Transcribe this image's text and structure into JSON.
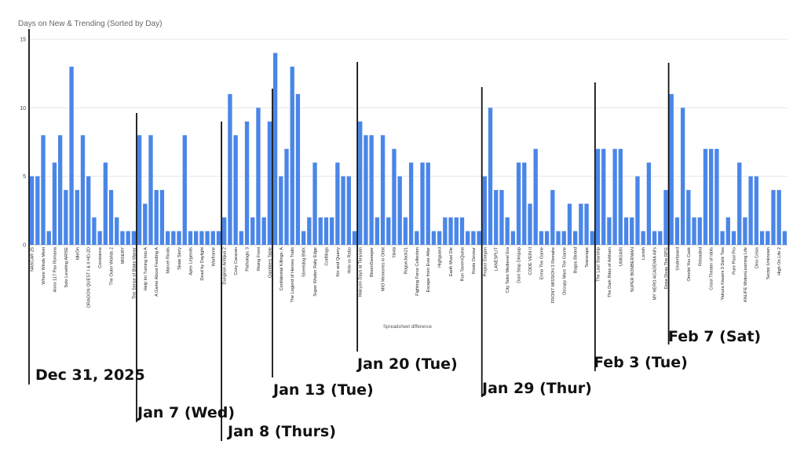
{
  "chart_data": {
    "type": "bar",
    "title": "Days on New & Trending (Sorted by Day)",
    "xlabel": "Spreadsheet difference",
    "ylabel": "",
    "ylim": [
      0,
      15
    ],
    "yticks": [
      0,
      5,
      10,
      15
    ],
    "grid": true,
    "legend": "none",
    "bar_color": "#4a86e8",
    "annotation_line_color": "#111111",
    "categories": [
      "NASCAR 25",
      "",
      "Where Winds Meet",
      "",
      "Anno 117 Pax Romana",
      "",
      "Solo Leveling ARISE",
      "",
      "IdleOn",
      "",
      "DRAGON QUEST I & II HD-2D",
      "",
      "Constance",
      "",
      "The Outer Worlds 2",
      "",
      "MISERY",
      "",
      "The Sense of Blake Manor",
      "",
      "Help Im Turning Into A",
      "",
      "A Game About Feeding A",
      "",
      "Marvel Rivals",
      "",
      "Skate Story",
      "",
      "Apex Legends",
      "",
      "Dead by Daylight",
      "",
      "Warframe",
      "",
      "Dungeon Antiqua 2",
      "",
      "Cozy Caravan",
      "",
      "Pathologic 3",
      "",
      "Rising Front",
      "",
      "Gamblers Table",
      "",
      "Confidential Killings: A",
      "",
      "The Legend of Heroes Trails",
      "",
      "Streetdog BMX",
      "",
      "Super Woden Rally Edge",
      "",
      "Craftlings",
      "",
      "Kin and Quarry",
      "",
      "Holo vs Robo",
      "",
      "Halcyon Days at Tanyuan",
      "",
      "BloomSweeper",
      "",
      "MIO Memories in Orbit",
      "",
      "TR49",
      "",
      "RogueJack21",
      "",
      "Fighting Force Collection",
      "",
      "Escape from Ever After",
      "",
      "Highguard",
      "",
      "Earth Must Die",
      "",
      "Run TavernQuest",
      "",
      "Roots Devour",
      "",
      "Project Dorgon",
      "",
      "LANESPLIT",
      "",
      "City Tales Medieval Era",
      "",
      "Dont Stop Dimpop",
      "",
      "CODE VEIN II",
      "",
      "Erma The Game",
      "",
      "FRONT MISSION 3 Remake",
      "",
      "Occupy Mars The Game",
      "",
      "Bogos Binted",
      "",
      "Tearscape",
      "",
      "The Last Starship",
      "",
      "The Dark Rites of Arkham",
      "",
      "UMIGARI",
      "",
      "SUPER BOMBERMAN",
      "",
      "Lovish",
      "",
      "MY HERO ACADEMIA All's",
      "",
      "Dosa Divas The RPG",
      "",
      "Underboard",
      "",
      "Omelet You Cook",
      "",
      "Reloaded",
      "",
      "Crisol Theater of Idols",
      "",
      "Yakuza Kiwami 3 Dark Ties",
      "",
      "Pure Pool Pro",
      "",
      "ANLIFE MotionLearning Life",
      "",
      "Dino Crisis",
      "",
      "Sector Unknown",
      "",
      "High On Life 2",
      ""
    ],
    "values": [
      5,
      5,
      8,
      1,
      6,
      8,
      4,
      13,
      4,
      8,
      5,
      2,
      1,
      6,
      4,
      2,
      1,
      1,
      1,
      8,
      3,
      8,
      4,
      4,
      1,
      1,
      1,
      8,
      1,
      1,
      1,
      1,
      1,
      1,
      2,
      11,
      8,
      1,
      9,
      2,
      10,
      2,
      9,
      14,
      5,
      7,
      13,
      11,
      1,
      2,
      6,
      2,
      2,
      2,
      6,
      5,
      5,
      1,
      9,
      8,
      8,
      2,
      8,
      2,
      7,
      5,
      2,
      6,
      1,
      6,
      6,
      1,
      1,
      2,
      2,
      2,
      2,
      1,
      1,
      1,
      5,
      10,
      4,
      4,
      2,
      1,
      6,
      6,
      3,
      7,
      1,
      1,
      4,
      1,
      1,
      3,
      1,
      3,
      3,
      1,
      7,
      7,
      2,
      7,
      7,
      2,
      2,
      5,
      1,
      6,
      1,
      1,
      4,
      11,
      2,
      10,
      4,
      2,
      2,
      7,
      7,
      7,
      1,
      2,
      1,
      6,
      2,
      5,
      5,
      1,
      1,
      4,
      4,
      1
    ],
    "annotations": [
      {
        "label": "Dec 31, 2025",
        "index": -0.5
      },
      {
        "label": "Jan 7 (Wed)",
        "index": 18.5
      },
      {
        "label": "Jan 8 (Thurs)",
        "index": 33.5
      },
      {
        "label": "Jan 13 (Tue)",
        "index": 42.5
      },
      {
        "label": "Jan 20 (Tue)",
        "index": 57.5
      },
      {
        "label": "Jan 29 (Thur)",
        "index": 79.5
      },
      {
        "label": "Feb 3 (Tue)",
        "index": 99.5
      },
      {
        "label": "Feb 7 (Sat)",
        "index": 112.5
      }
    ]
  }
}
